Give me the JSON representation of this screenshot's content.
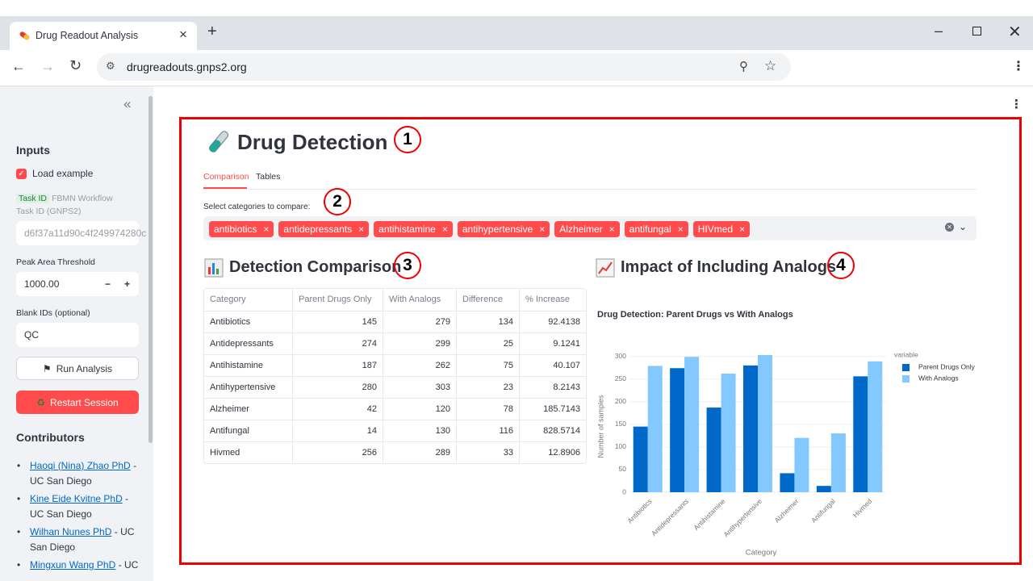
{
  "browser": {
    "tab_title": "Drug Readout Analysis",
    "url": "drugreadouts.gnps2.org"
  },
  "sidebar": {
    "heading": "Inputs",
    "load_example": "Load example",
    "task_id_badge": "Task ID",
    "task_id_label": "FBMN Workflow Task ID (GNPS2)",
    "task_id_value": "d6f37a11d90c4f249974280c",
    "peak_label": "Peak Area Threshold",
    "peak_value": "1000.00",
    "blank_label": "Blank IDs (optional)",
    "blank_value": "QC",
    "run_button": "Run Analysis",
    "restart_button": "Restart Session",
    "contributors_heading": "Contributors",
    "contributors": [
      {
        "name": "Haoqi (Nina) Zhao PhD",
        "affiliation": "- UC San Diego"
      },
      {
        "name": "Kine Eide Kvitne PhD",
        "affiliation": "- UC San Diego"
      },
      {
        "name": "Wilhan Nunes PhD",
        "affiliation": "- UC San Diego"
      },
      {
        "name": "Mingxun Wang PhD",
        "affiliation": "- UC"
      }
    ]
  },
  "main": {
    "title": "Drug Detection",
    "tabs": [
      "Comparison",
      "Tables"
    ],
    "select_label": "Select categories to compare:",
    "chips": [
      "antibiotics",
      "antidepressants",
      "antihistamine",
      "antihypertensive",
      "Alzheimer",
      "antifungal",
      "HIVmed"
    ],
    "section_left": "Detection Comparison",
    "section_right": "Impact of Including Analogs",
    "annotations": [
      "1",
      "2",
      "3",
      "4"
    ]
  },
  "table": {
    "columns": [
      "Category",
      "Parent Drugs Only",
      "With Analogs",
      "Difference",
      "% Increase"
    ],
    "rows": [
      [
        "Antibiotics",
        145,
        279,
        134,
        92.4138
      ],
      [
        "Antidepressants",
        274,
        299,
        25,
        9.1241
      ],
      [
        "Antihistamine",
        187,
        262,
        75,
        40.107
      ],
      [
        "Antihypertensive",
        280,
        303,
        23,
        8.2143
      ],
      [
        "Alzheimer",
        42,
        120,
        78,
        185.7143
      ],
      [
        "Antifungal",
        14,
        130,
        116,
        828.5714
      ],
      [
        "Hivmed",
        256,
        289,
        33,
        12.8906
      ]
    ]
  },
  "chart_data": {
    "type": "bar",
    "title": "Drug Detection: Parent Drugs vs With Analogs",
    "x_label": "Category",
    "y_label": "Number of samples",
    "legend_title": "variable",
    "categories": [
      "Antibiotics",
      "Antidepressants",
      "Antihistamine",
      "Antihypertensive",
      "Alzheimer",
      "Antifungal",
      "Hivmed"
    ],
    "series": [
      {
        "name": "Parent Drugs Only",
        "color": "#0068c9",
        "values": [
          145,
          274,
          187,
          280,
          42,
          14,
          256
        ]
      },
      {
        "name": "With Analogs",
        "color": "#83c9ff",
        "values": [
          279,
          299,
          262,
          303,
          120,
          130,
          289
        ]
      }
    ],
    "ylim": [
      0,
      319
    ],
    "yticks": [
      0,
      50,
      100,
      150,
      200,
      250,
      300
    ],
    "grid": true
  }
}
